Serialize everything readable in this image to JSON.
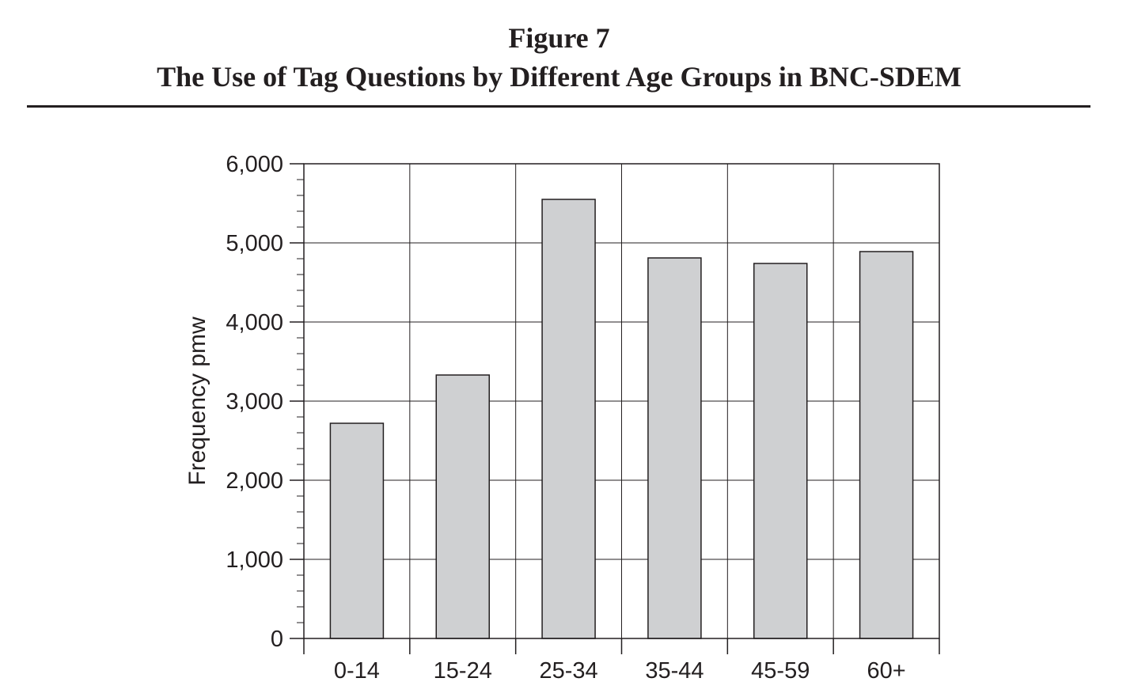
{
  "figure": {
    "number": "Figure 7",
    "title": "The Use of Tag Questions by Different Age Groups in BNC-SDEM"
  },
  "colors": {
    "bar_fill": "#cfd0d2",
    "ink": "#231f20",
    "grid": "#231f20"
  },
  "chart_data": {
    "type": "bar",
    "title": "The Use of Tag Questions by Different Age Groups in BNC-SDEM",
    "xlabel": "",
    "ylabel": "Frequency pmw",
    "categories": [
      "0-14",
      "15-24",
      "25-34",
      "35-44",
      "45-59",
      "60+"
    ],
    "values": [
      2720,
      3330,
      5550,
      4810,
      4740,
      4890
    ],
    "ylim": [
      0,
      6000
    ],
    "yticks": [
      0,
      1000,
      2000,
      3000,
      4000,
      5000,
      6000
    ],
    "ytick_labels": [
      "0",
      "1,000",
      "2,000",
      "3,000",
      "4,000",
      "5,000",
      "6,000"
    ],
    "minor_ticks_per_major": 5,
    "grid": true,
    "legend": "none"
  }
}
